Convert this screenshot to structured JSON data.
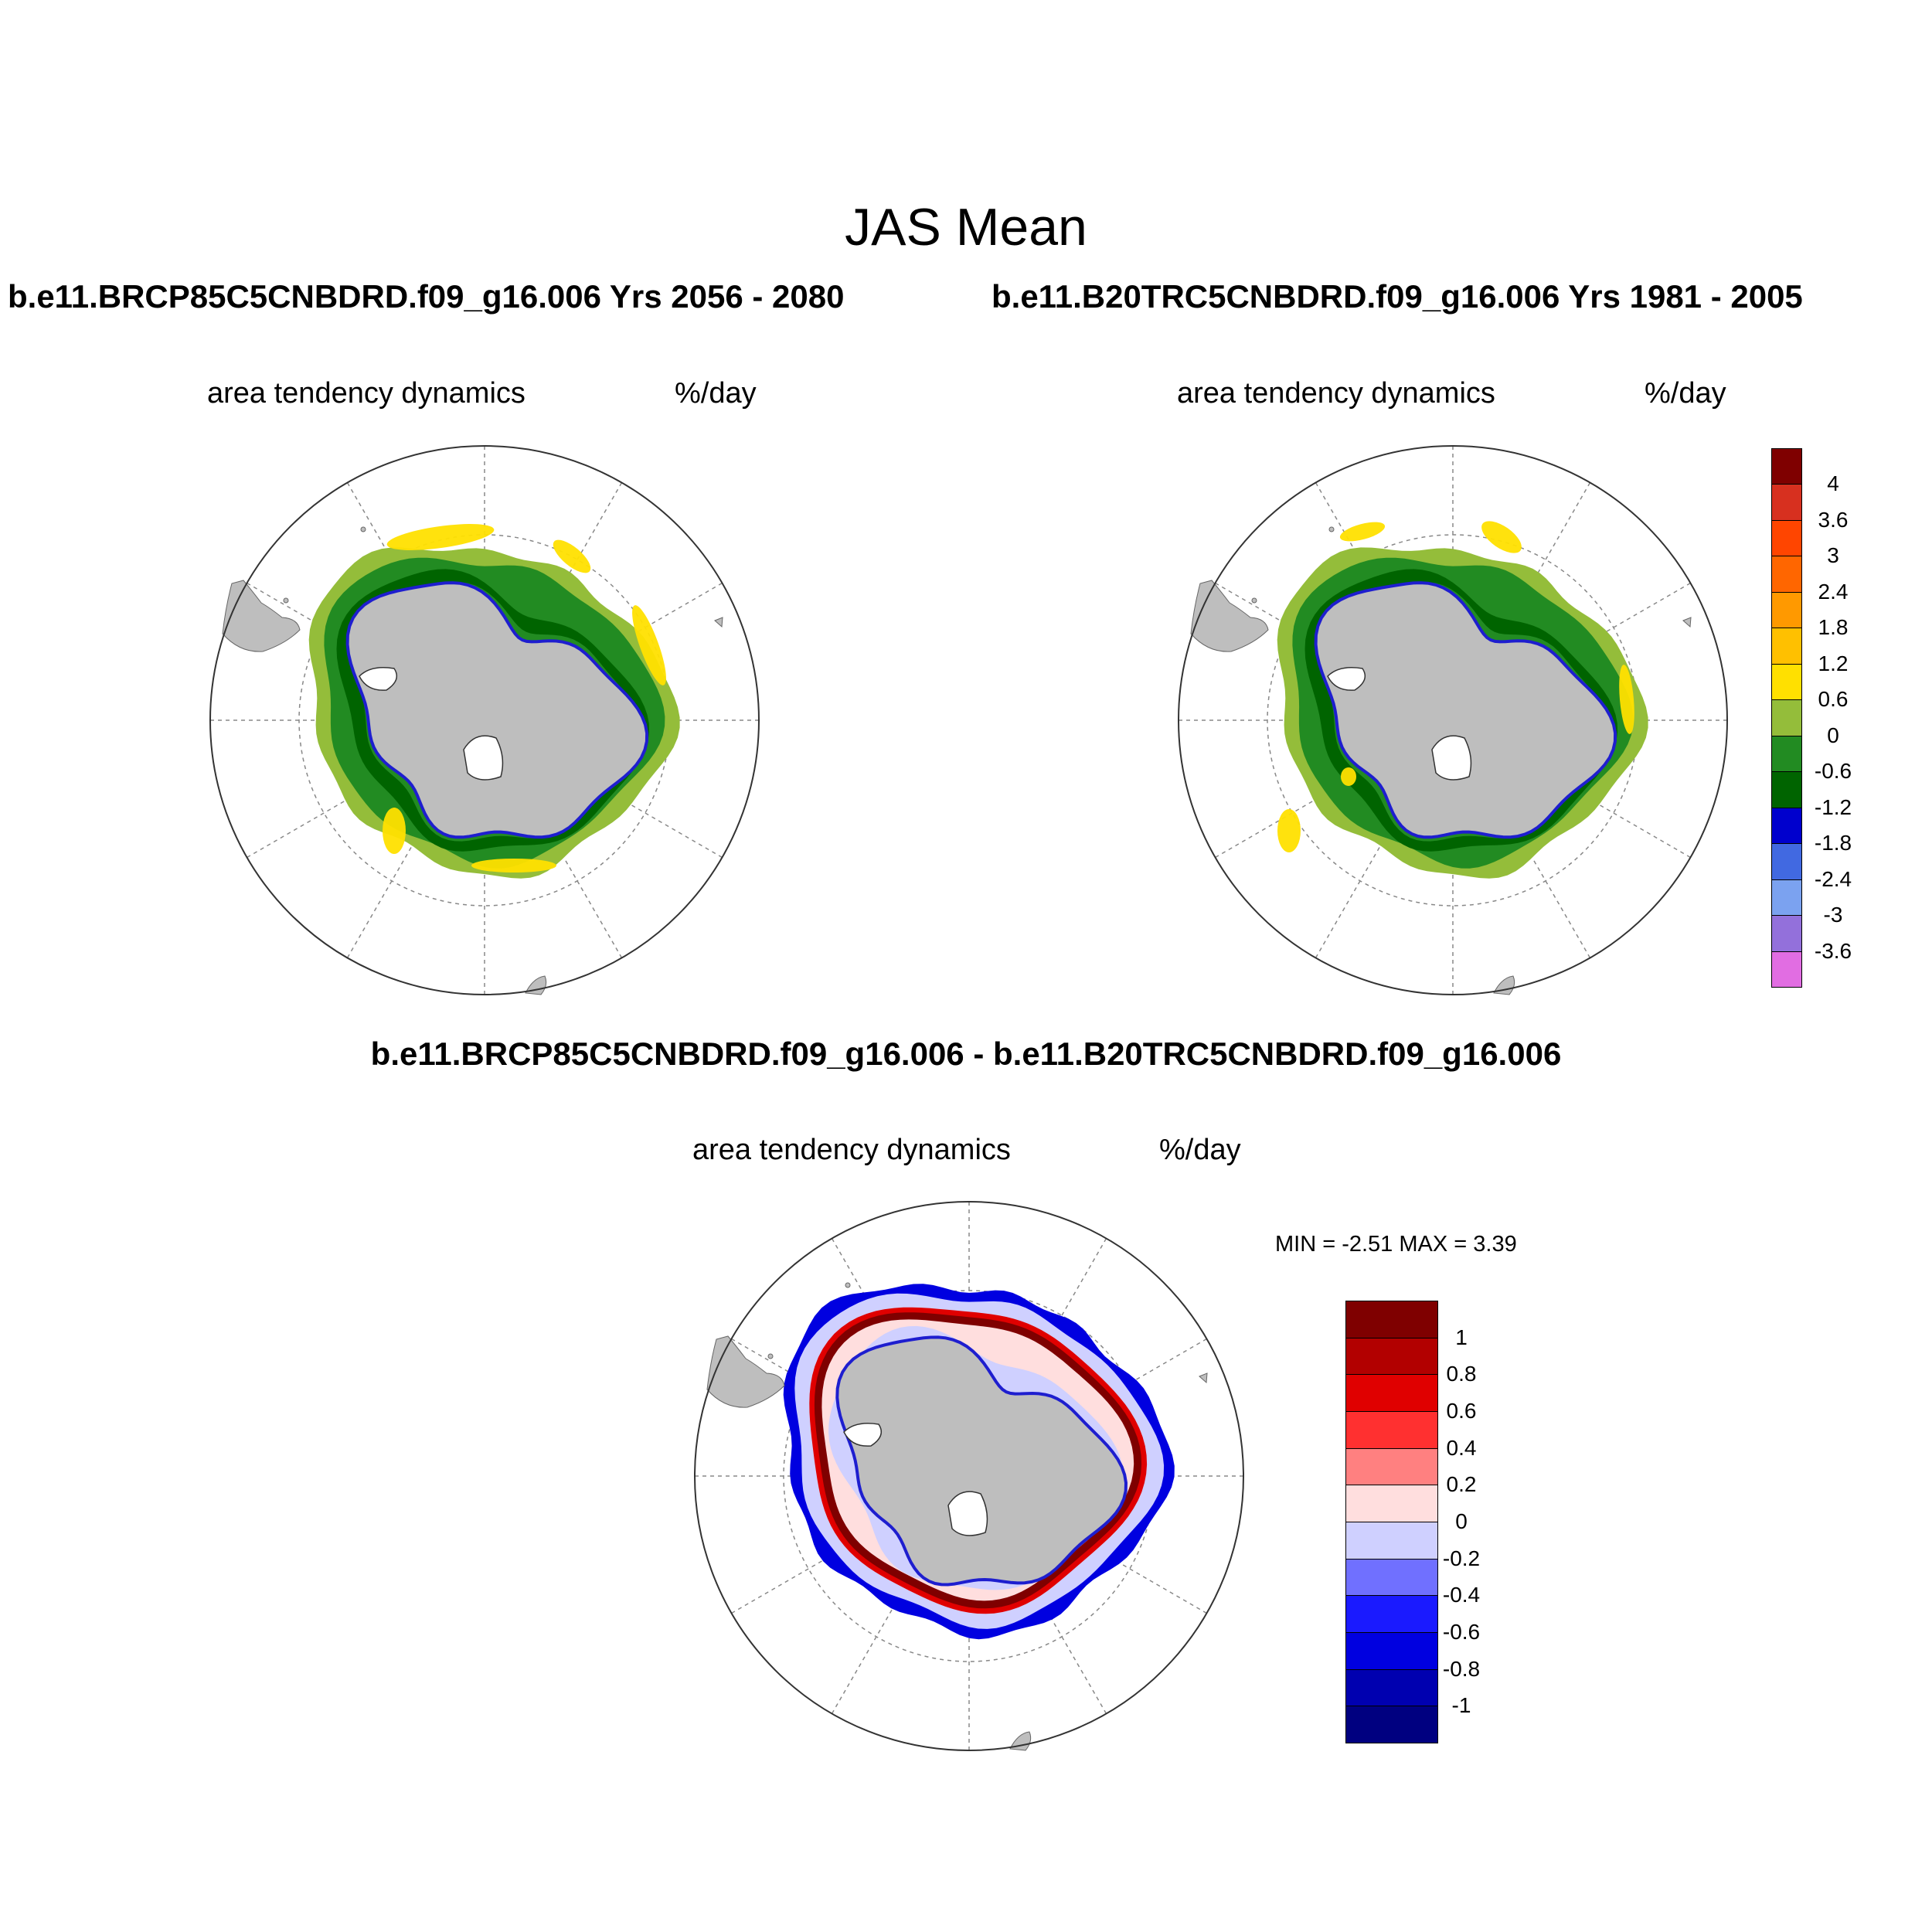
{
  "main_title": "JAS Mean",
  "left_case_title": "b.e11.BRCP85C5CNBDRD.f09_g16.006  Yrs 2056 - 2080",
  "right_case_title": "b.e11.B20TRC5CNBDRD.f09_g16.006  Yrs 1981 - 2005",
  "diff_title": "b.e11.BRCP85C5CNBDRD.f09_g16.006 - b.e11.B20TRC5CNBDRD.f09_g16.006",
  "panels": {
    "left": {
      "variable": "area tendency dynamics",
      "units": "%/day"
    },
    "right": {
      "variable": "area tendency dynamics",
      "units": "%/day"
    },
    "diff": {
      "variable": "area tendency dynamics",
      "units": "%/day",
      "min_max": "MIN =  -2.51 MAX =   3.39"
    }
  },
  "colorbar_top": {
    "colors": [
      "#7f0000",
      "#d7301f",
      "#ff4500",
      "#ff6600",
      "#ff9900",
      "#ffc000",
      "#ffe000",
      "#94bd3a",
      "#228b22",
      "#006400",
      "#0000cd",
      "#4169e1",
      "#7ba2f0",
      "#9370db",
      "#e16de2"
    ],
    "labels": [
      "4",
      "3.6",
      "3",
      "2.4",
      "1.8",
      "1.2",
      "0.6",
      "0",
      "-0.6",
      "-1.2",
      "-1.8",
      "-2.4",
      "-3",
      "-3.6"
    ]
  },
  "colorbar_diff": {
    "colors": [
      "#7f0000",
      "#b20000",
      "#e00000",
      "#ff3030",
      "#ff8080",
      "#ffdede",
      "#cfd0ff",
      "#7070ff",
      "#1a1aff",
      "#0000e0",
      "#0000b0",
      "#000080"
    ],
    "labels": [
      "1",
      "0.8",
      "0.6",
      "0.4",
      "0.2",
      "0",
      "-0.2",
      "-0.4",
      "-0.6",
      "-0.8",
      "-1"
    ]
  },
  "map_colors": {
    "land": "#bebebe",
    "ice_shelf": "#ffffff",
    "outer_zone_left": "#94bd3a",
    "outer_zone_right": "#94bd3a",
    "main_zone": "#228b22",
    "inner_zone": "#006400",
    "positive_patch": "#ffe000",
    "diff_background": "#cfd0ff",
    "diff_ring": "#e00000",
    "diff_ring_core": "#7f0000",
    "diff_outer_edge": "#0000e0",
    "diff_pink": "#ffdede"
  }
}
